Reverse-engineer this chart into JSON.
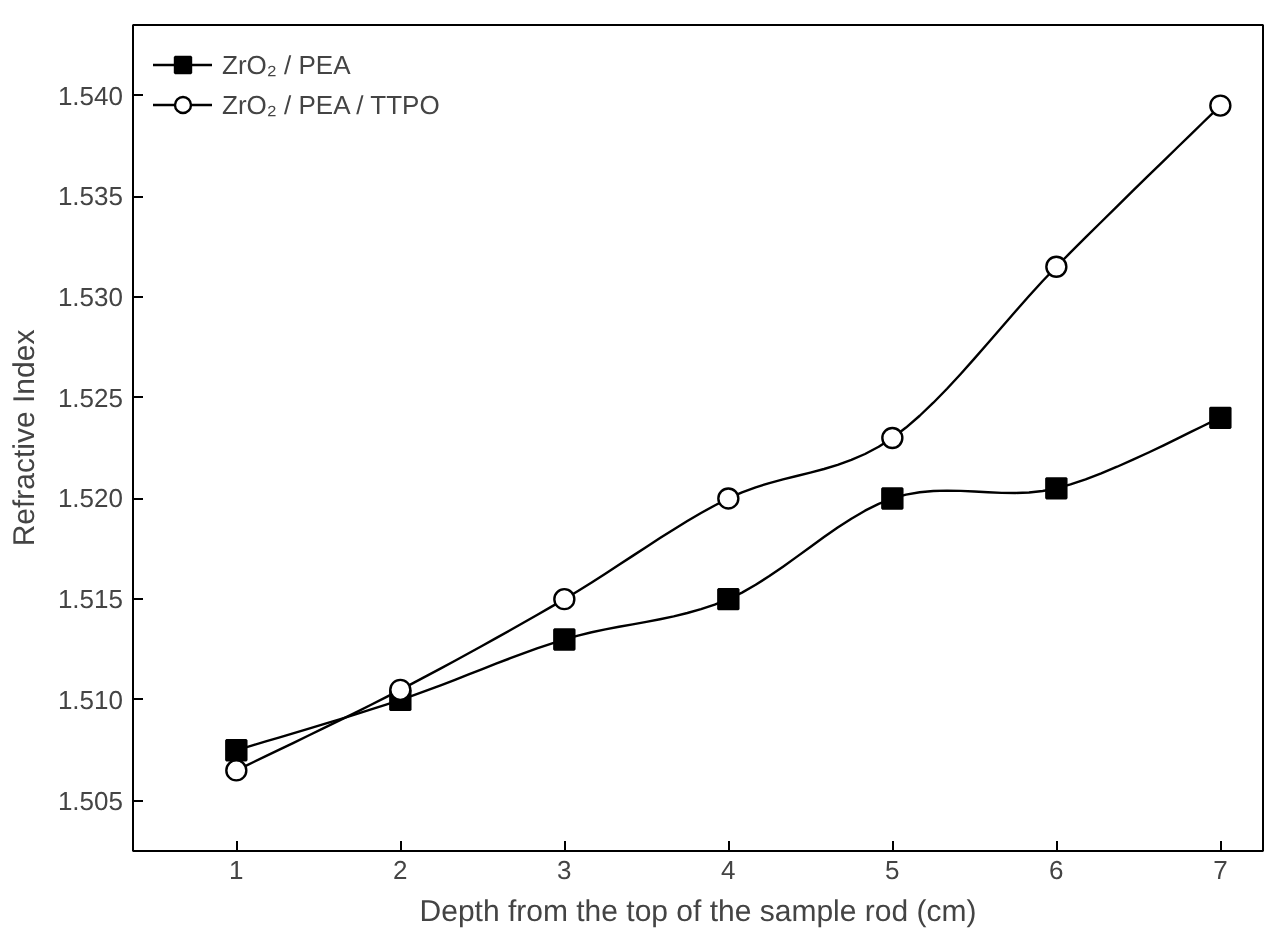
{
  "chart_data": {
    "type": "line",
    "xlabel": "Depth from the top of the sample rod (cm)",
    "ylabel": "Refractive Index",
    "x": [
      1,
      2,
      3,
      4,
      5,
      6,
      7
    ],
    "series": [
      {
        "name": "ZrO₂ / PEA",
        "color": "#000000",
        "marker": "square",
        "values": [
          1.5075,
          1.51,
          1.513,
          1.515,
          1.52,
          1.5205,
          1.524
        ]
      },
      {
        "name": "ZrO₂ / PEA / TTPO",
        "color": "#000000",
        "marker": "circle",
        "values": [
          1.5065,
          1.5105,
          1.515,
          1.52,
          1.523,
          1.5315,
          1.5395
        ]
      }
    ],
    "xlim": [
      0.37,
      7.26
    ],
    "ylim": [
      1.5025,
      1.5435
    ],
    "xticks": [
      1,
      2,
      3,
      4,
      5,
      6,
      7
    ],
    "yticks": [
      {
        "value": 1.505,
        "label": "1.505"
      },
      {
        "value": 1.51,
        "label": "1.510"
      },
      {
        "value": 1.515,
        "label": "1.515"
      },
      {
        "value": 1.52,
        "label": "1.520"
      },
      {
        "value": 1.525,
        "label": "1.525"
      },
      {
        "value": 1.53,
        "label": "1.530"
      },
      {
        "value": 1.535,
        "label": "1.535"
      },
      {
        "value": 1.54,
        "label": "1.540"
      }
    ],
    "legend": "top left",
    "grid": false
  }
}
